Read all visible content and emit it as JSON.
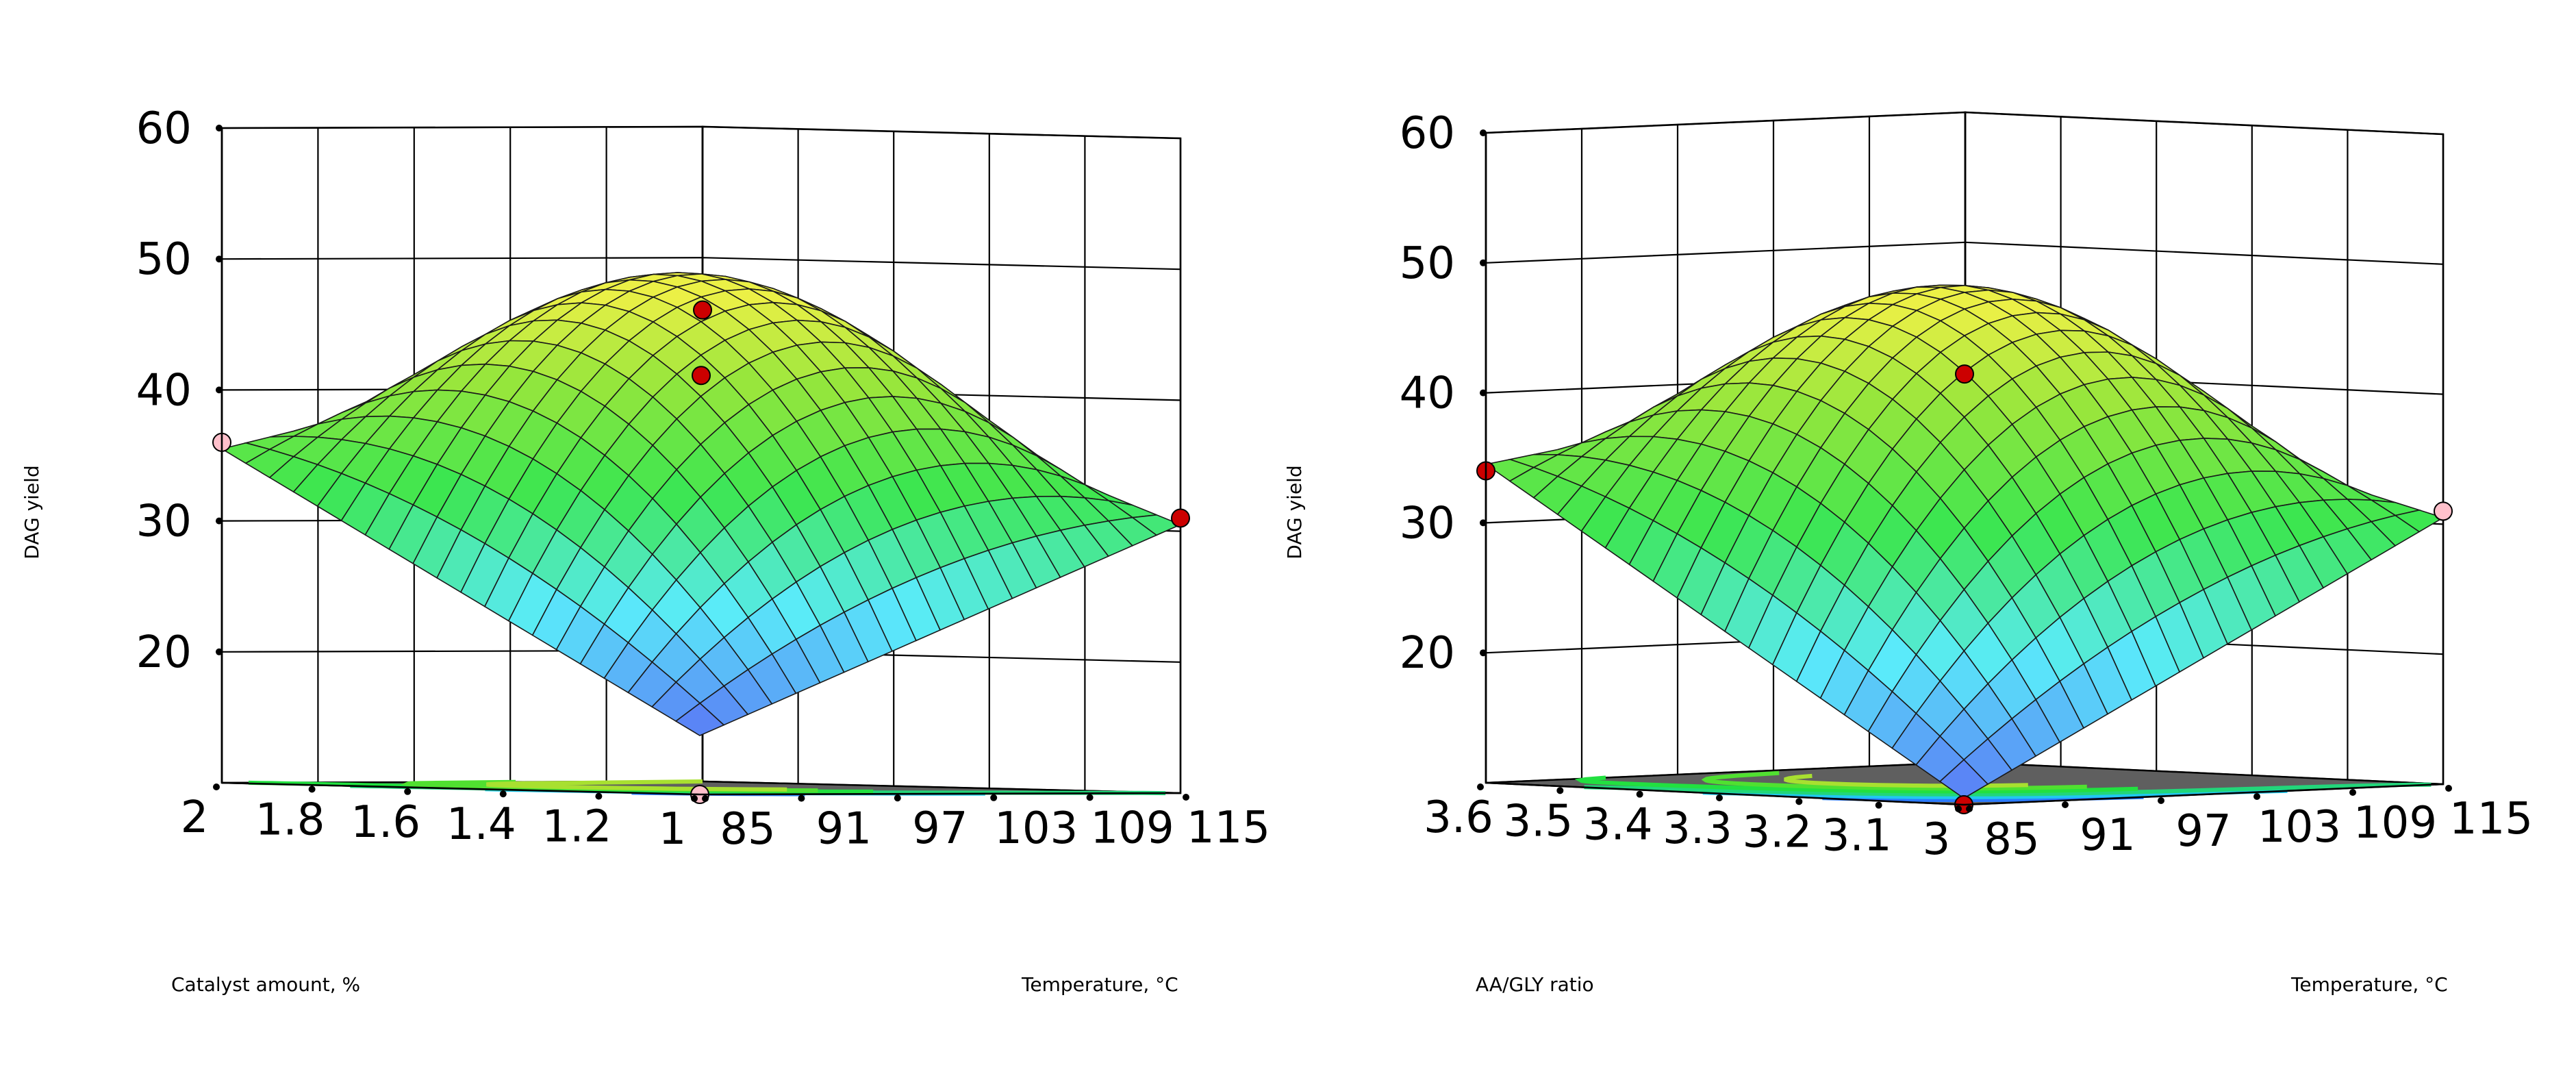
{
  "chart_data": [
    {
      "type": "surface3d",
      "title": "",
      "zlabel": "DAG yield",
      "xlabel": "Catalyst amount, %",
      "ylabel": "Temperature, °C",
      "z_ticks": [
        "20",
        "30",
        "40",
        "50",
        "60"
      ],
      "zlim": [
        10,
        60
      ],
      "x_ticks": [
        "1",
        "1.2",
        "1.4",
        "1.6",
        "1.8",
        "2"
      ],
      "x_range": [
        1,
        2
      ],
      "y_ticks": [
        "85",
        "91",
        "97",
        "103",
        "109",
        "115"
      ],
      "y_range": [
        85,
        115
      ],
      "surface_values": {
        "corner_at_x_min_y_min": 14.5,
        "corner_at_x_max_y_min": 35.5,
        "corner_at_x_min_y_max": 30.5,
        "corner_at_x_max_y_max": 44.5,
        "peak": 47.5
      },
      "design_points": [
        {
          "x": 1.5,
          "y": 100,
          "z": 41.5,
          "color": "#cc0000"
        },
        {
          "x": 2,
          "y": 115,
          "z": 46,
          "color": "#cc0000"
        },
        {
          "x": 1,
          "y": 115,
          "z": 31,
          "color": "#cc0000"
        },
        {
          "x": 2,
          "y": 85,
          "z": 36,
          "color": "#ffc0cb"
        },
        {
          "x": 1,
          "y": 85,
          "z": 10,
          "color": "#ffc0cb"
        }
      ]
    },
    {
      "type": "surface3d",
      "title": "",
      "zlabel": "DAG yield",
      "xlabel": "AA/GLY ratio",
      "ylabel": "Temperature, °C",
      "z_ticks": [
        "20",
        "30",
        "40",
        "50",
        "60"
      ],
      "zlim": [
        10,
        60
      ],
      "x_ticks": [
        "3",
        "3.1",
        "3.2",
        "3.3",
        "3.4",
        "3.5",
        "3.6"
      ],
      "x_range": [
        3,
        3.6
      ],
      "y_ticks": [
        "85",
        "91",
        "97",
        "103",
        "109",
        "115"
      ],
      "y_range": [
        85,
        115
      ],
      "surface_values": {
        "corner_at_x_min_y_min": 10.5,
        "corner_at_x_max_y_min": 34.5,
        "corner_at_x_min_y_max": 30.5,
        "corner_at_x_max_y_max": 40.5,
        "peak": 46.5
      },
      "design_points": [
        {
          "x": 3.3,
          "y": 100,
          "z": 41.5,
          "color": "#cc0000"
        },
        {
          "x": 3.6,
          "y": 85,
          "z": 34,
          "color": "#cc0000"
        },
        {
          "x": 3,
          "y": 85,
          "z": 10,
          "color": "#cc0000"
        },
        {
          "x": 3,
          "y": 115,
          "z": 31,
          "color": "#ffc0cb"
        }
      ]
    }
  ]
}
